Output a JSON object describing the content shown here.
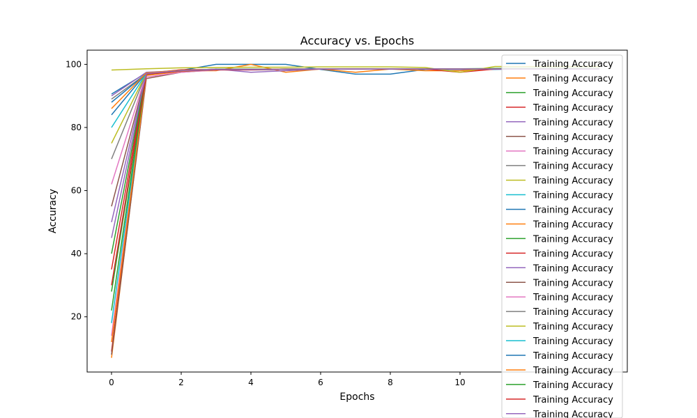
{
  "chart_data": {
    "type": "line",
    "title": "Accuracy vs. Epochs",
    "xlabel": "Epochs",
    "ylabel": "Accuracy",
    "xlim": [
      -0.7,
      14.8
    ],
    "ylim": [
      2.5,
      104.5
    ],
    "x_ticks": [
      0,
      2,
      4,
      6,
      8,
      10
    ],
    "y_ticks": [
      20,
      40,
      60,
      80,
      100
    ],
    "grid": false,
    "legend_position": "upper-right",
    "legend_label": "Training Accuracy",
    "colors": [
      "#1f77b4",
      "#ff7f0e",
      "#2ca02c",
      "#d62728",
      "#9467bd",
      "#8c564b",
      "#e377c2",
      "#7f7f7f",
      "#bcbd22",
      "#17becf"
    ],
    "n_series": 25,
    "x": [
      0,
      1,
      2,
      3,
      4,
      5,
      6,
      7,
      8,
      9,
      10,
      11,
      12,
      13,
      14
    ],
    "series": [
      {
        "name": "Training Accuracy",
        "values": [
          90.6,
          97.3,
          98.1,
          100.0,
          100.0,
          100.0,
          98.4,
          96.9,
          96.9,
          98.4,
          98.4,
          98.4,
          98.6,
          98.6,
          98.6
        ]
      },
      {
        "name": "Training Accuracy",
        "values": [
          7.0,
          96.5,
          98.0,
          98.0,
          100.0,
          97.5,
          98.5,
          97.5,
          98.5,
          98.0,
          98.0,
          98.6,
          98.6,
          98.6,
          98.6
        ]
      },
      {
        "name": "Training Accuracy",
        "values": [
          28.0,
          97.0,
          98.0,
          98.5,
          98.5,
          98.5,
          98.5,
          98.5,
          98.5,
          98.5,
          98.6,
          98.7,
          98.7,
          98.7,
          98.7
        ]
      },
      {
        "name": "Training Accuracy",
        "values": [
          9.0,
          97.2,
          98.3,
          98.4,
          98.4,
          98.4,
          98.5,
          98.5,
          98.5,
          98.5,
          97.5,
          98.5,
          98.6,
          98.6,
          98.6
        ]
      },
      {
        "name": "Training Accuracy",
        "values": [
          90.0,
          97.5,
          98.0,
          98.5,
          97.5,
          98.0,
          98.5,
          98.5,
          98.5,
          98.5,
          98.5,
          98.5,
          98.5,
          98.5,
          98.5
        ]
      },
      {
        "name": "Training Accuracy",
        "values": [
          8.0,
          95.5,
          97.5,
          98.3,
          98.3,
          98.4,
          98.5,
          98.5,
          98.5,
          98.5,
          98.5,
          98.5,
          98.5,
          98.5,
          98.5
        ]
      },
      {
        "name": "Training Accuracy",
        "values": [
          14.0,
          96.0,
          97.5,
          98.2,
          98.2,
          98.4,
          98.5,
          98.5,
          98.5,
          98.5,
          98.5,
          98.5,
          98.5,
          98.5,
          98.5
        ]
      },
      {
        "name": "Training Accuracy",
        "values": [
          89.0,
          97.0,
          98.0,
          98.4,
          98.4,
          98.5,
          98.5,
          98.6,
          98.6,
          98.6,
          98.6,
          98.6,
          98.6,
          98.6,
          98.6
        ]
      },
      {
        "name": "Training Accuracy",
        "values": [
          98.2,
          98.6,
          98.9,
          99.0,
          99.1,
          99.1,
          99.2,
          99.2,
          99.2,
          99.0,
          97.5,
          99.3,
          99.3,
          99.3,
          99.3
        ]
      },
      {
        "name": "Training Accuracy",
        "values": [
          18.0,
          96.8,
          97.8,
          98.3,
          98.3,
          98.4,
          98.5,
          98.5,
          98.5,
          98.5,
          98.5,
          98.5,
          98.5,
          98.5,
          98.5
        ]
      },
      {
        "name": "Training Accuracy",
        "values": [
          88.0,
          97.1,
          98.0,
          98.4,
          98.4,
          98.5,
          98.5,
          98.5,
          98.5,
          98.5,
          98.5,
          98.5,
          98.5,
          98.5,
          98.5
        ]
      },
      {
        "name": "Training Accuracy",
        "values": [
          12.0,
          96.5,
          97.8,
          98.3,
          98.3,
          98.4,
          98.5,
          98.5,
          98.5,
          98.5,
          98.5,
          98.5,
          98.5,
          98.5,
          98.5
        ]
      },
      {
        "name": "Training Accuracy",
        "values": [
          22.0,
          96.9,
          97.9,
          98.3,
          98.3,
          98.4,
          98.5,
          98.5,
          98.5,
          98.5,
          98.5,
          98.5,
          98.5,
          98.5,
          98.5
        ]
      },
      {
        "name": "Training Accuracy",
        "values": [
          35.0,
          97.0,
          98.0,
          98.3,
          98.3,
          98.4,
          98.5,
          98.5,
          98.5,
          98.5,
          98.5,
          98.5,
          98.5,
          98.5,
          98.5
        ]
      },
      {
        "name": "Training Accuracy",
        "values": [
          45.0,
          97.0,
          98.0,
          98.3,
          98.3,
          98.4,
          98.5,
          98.5,
          98.5,
          98.5,
          98.5,
          98.5,
          98.5,
          98.5,
          98.5
        ]
      },
      {
        "name": "Training Accuracy",
        "values": [
          55.0,
          97.1,
          98.0,
          98.4,
          98.4,
          98.4,
          98.5,
          98.5,
          98.5,
          98.5,
          98.5,
          98.5,
          98.5,
          98.5,
          98.5
        ]
      },
      {
        "name": "Training Accuracy",
        "values": [
          62.0,
          97.1,
          98.0,
          98.4,
          98.4,
          98.4,
          98.5,
          98.5,
          98.5,
          98.5,
          98.5,
          98.5,
          98.5,
          98.5,
          98.5
        ]
      },
      {
        "name": "Training Accuracy",
        "values": [
          70.0,
          97.2,
          98.1,
          98.4,
          98.4,
          98.5,
          98.5,
          98.5,
          98.5,
          98.5,
          98.5,
          98.5,
          98.5,
          98.5,
          98.5
        ]
      },
      {
        "name": "Training Accuracy",
        "values": [
          75.0,
          97.2,
          98.1,
          98.4,
          98.4,
          98.5,
          98.5,
          98.5,
          98.5,
          98.5,
          98.5,
          98.5,
          98.5,
          98.5,
          98.5
        ]
      },
      {
        "name": "Training Accuracy",
        "values": [
          80.0,
          97.2,
          98.1,
          98.4,
          98.4,
          98.5,
          98.5,
          98.5,
          98.5,
          98.5,
          98.5,
          98.5,
          98.5,
          98.5,
          98.5
        ]
      },
      {
        "name": "Training Accuracy",
        "values": [
          84.0,
          97.3,
          98.1,
          98.4,
          98.4,
          98.5,
          98.5,
          98.5,
          98.5,
          98.5,
          98.5,
          98.5,
          98.5,
          98.5,
          98.5
        ]
      },
      {
        "name": "Training Accuracy",
        "values": [
          86.0,
          97.3,
          98.1,
          98.4,
          98.4,
          98.5,
          98.5,
          98.5,
          98.5,
          98.5,
          98.5,
          98.5,
          98.5,
          98.5,
          98.5
        ]
      },
      {
        "name": "Training Accuracy",
        "values": [
          40.0,
          97.0,
          98.0,
          98.3,
          98.3,
          98.4,
          98.5,
          98.5,
          98.5,
          98.5,
          98.5,
          98.5,
          98.5,
          98.5,
          98.5
        ]
      },
      {
        "name": "Training Accuracy",
        "values": [
          30.0,
          96.9,
          97.9,
          98.3,
          98.3,
          98.4,
          98.5,
          98.5,
          98.5,
          98.5,
          98.5,
          98.5,
          98.5,
          98.5,
          98.5
        ]
      },
      {
        "name": "Training Accuracy",
        "values": [
          50.0,
          97.1,
          98.0,
          98.4,
          98.4,
          98.4,
          98.5,
          98.5,
          98.5,
          98.5,
          98.5,
          98.5,
          98.5,
          98.5,
          98.5
        ]
      }
    ]
  }
}
